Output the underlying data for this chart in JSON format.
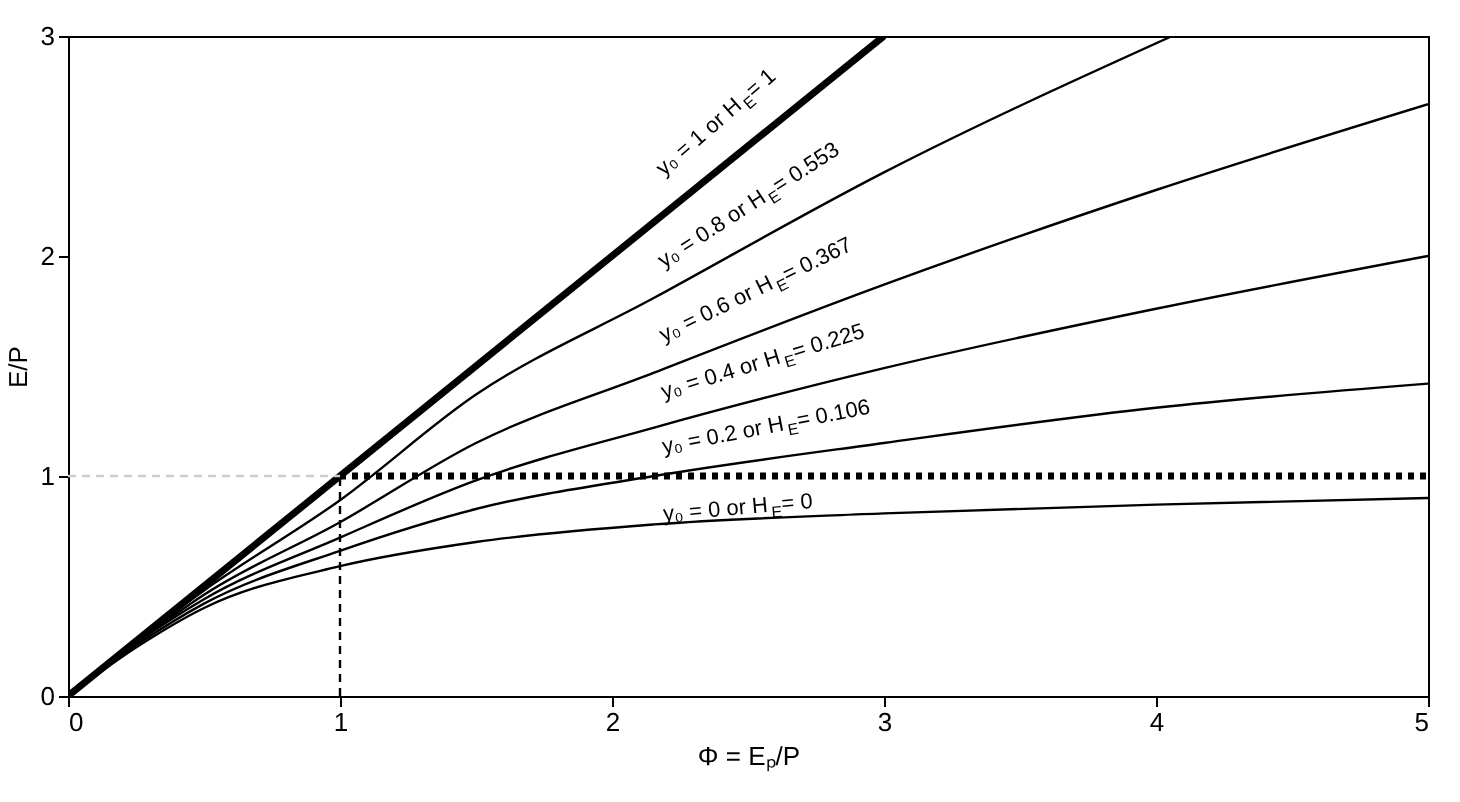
{
  "chart_data": {
    "type": "line",
    "xlabel": "Φ = Eₚ/P",
    "ylabel": "E/P",
    "xlim": [
      0,
      5
    ],
    "ylim": [
      0,
      3
    ],
    "xticks": [
      0,
      1,
      2,
      3,
      4,
      5
    ],
    "yticks": [
      0,
      1,
      2,
      3
    ],
    "grid": false,
    "marker": "none",
    "series": [
      {
        "color": "#000000",
        "line_style": "solid",
        "x": [
          0,
          3
        ],
        "values": [
          0,
          3
        ]
      },
      {
        "color": "#000000",
        "line_style": "solid",
        "x": [
          0,
          0.25,
          0.5,
          1,
          1.5,
          2.155,
          3,
          4.06
        ],
        "values": [
          0,
          0.25,
          0.48,
          0.89,
          1.37,
          1.81,
          2.38,
          3
        ]
      },
      {
        "color": "#000000",
        "line_style": "solid",
        "x": [
          0,
          0.25,
          0.5,
          1,
          1.5,
          2.155,
          3,
          4,
          5
        ],
        "values": [
          0,
          0.24,
          0.46,
          0.79,
          1.15,
          1.47,
          1.87,
          2.3,
          2.69
        ]
      },
      {
        "color": "#000000",
        "line_style": "solid",
        "x": [
          0,
          0.25,
          0.5,
          1,
          1.5,
          2.155,
          3,
          4,
          5
        ],
        "values": [
          0,
          0.24,
          0.44,
          0.72,
          0.98,
          1.22,
          1.49,
          1.76,
          2.0
        ]
      },
      {
        "color": "#000000",
        "line_style": "solid",
        "x": [
          0,
          0.25,
          0.5,
          1,
          1.5,
          2.155,
          3,
          4,
          5
        ],
        "values": [
          0,
          0.23,
          0.42,
          0.66,
          0.85,
          1.0,
          1.15,
          1.31,
          1.42
        ]
      },
      {
        "color": "#000000",
        "line_style": "solid",
        "x": [
          0,
          0.25,
          0.5,
          1,
          1.5,
          2.155,
          3,
          4,
          5
        ],
        "values": [
          0,
          0.22,
          0.4,
          0.59,
          0.7,
          0.78,
          0.83,
          0.87,
          0.9
        ]
      },
      {
        "color": "#000000",
        "line_style": "dotted",
        "x": [
          1,
          5
        ],
        "values": [
          1,
          1
        ]
      },
      {
        "color": "#000000",
        "line_style": "dashed",
        "x": [
          1,
          1
        ],
        "values": [
          0,
          1
        ]
      },
      {
        "color": "#cccccc",
        "line_style": "dashed",
        "x": [
          0,
          1
        ],
        "values": [
          1,
          1
        ]
      }
    ],
    "annotations": [
      "y₀ = 1 or H$_{E}$ = 1",
      "y₀ = 0.8 or H$_{E}$ = 0.553",
      "y₀ = 0.6 or H$_{E}$ = 0.367",
      "y₀ = 0.4 or H$_{E}$ = 0.225",
      "y₀ = 0.2 or H$_{E}$ = 0.106",
      "y₀ = 0 or H$_{E}$ = 0"
    ]
  }
}
